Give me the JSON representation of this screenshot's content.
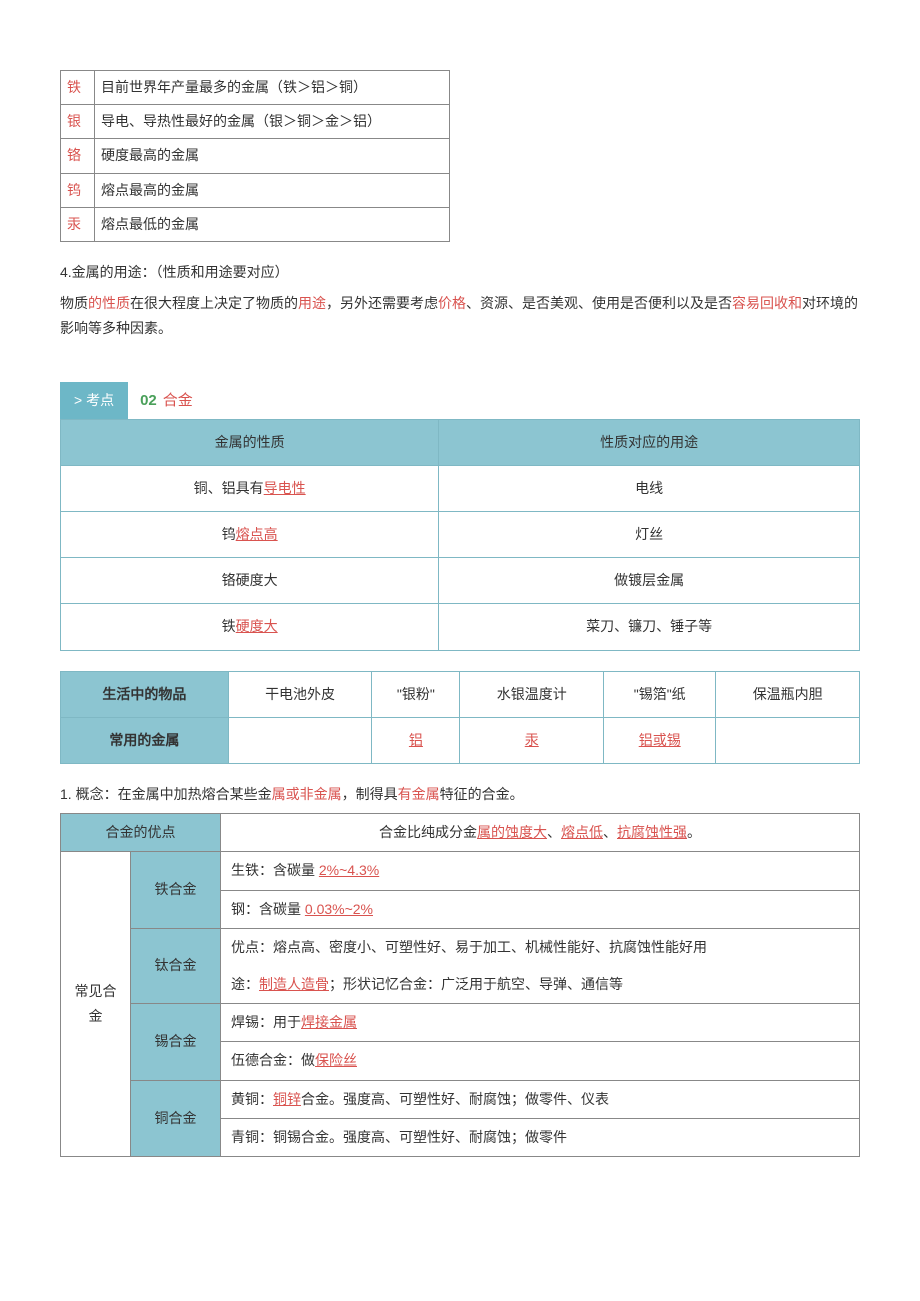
{
  "colors": {
    "teal_header": "#8cc5d1",
    "teal_border": "#7fb8c4",
    "highlight_red": "#d9534f",
    "green": "#4aa05a",
    "text": "#333333",
    "grey_border": "#888888"
  },
  "table1": {
    "rows": [
      {
        "k": "铁",
        "v": "目前世界年产量最多的金属（铁＞铝＞铜）"
      },
      {
        "k": "银",
        "v": "导电、导热性最好的金属（银＞铜＞金＞铝）"
      },
      {
        "k": "铬",
        "v": "硬度最高的金属"
      },
      {
        "k": "钨",
        "v": "熔点最高的金属"
      },
      {
        "k": "汞",
        "v": "熔点最低的金属"
      }
    ]
  },
  "section4": {
    "title": "4.金属的用途：（性质和用途要对应）",
    "p1_a": "物质",
    "p1_b": "的性质",
    "p1_c": "在很大程度上决定了物质的",
    "p1_d": "用途",
    "p1_e": "，另外还需要考虑",
    "p1_f": "价格",
    "p1_g": "、资源、是否美观、使用是否便利以及是否",
    "p1_h": "容易回收和",
    "p1_i": "对环境的影响等多种因素。"
  },
  "kaodian": {
    "badge": "> 考点",
    "num": "02",
    "title": "合金"
  },
  "table2": {
    "h1": "金属的性质",
    "h2": "性质对应的用途",
    "rows": [
      {
        "a_pre": "铜、铝具有",
        "a_hl": "导电性",
        "a_ul": true,
        "b": "电线"
      },
      {
        "a_pre": "钨",
        "a_hl": "熔点高",
        "a_ul": true,
        "b": "灯丝"
      },
      {
        "a_pre": "铬硬度大",
        "a_hl": "",
        "a_ul": false,
        "b": "做镀层金属"
      },
      {
        "a_pre": "铁",
        "a_hl": "硬度大",
        "a_ul": true,
        "b": "菜刀、镰刀、锤子等"
      }
    ]
  },
  "table3": {
    "h1": "生活中的物品",
    "h2": "常用的金属",
    "cols": [
      "干电池外皮",
      "\"银粉\"",
      "水银温度计",
      "\"锡箔\"纸",
      "保温瓶内胆"
    ],
    "vals": [
      {
        "text": "",
        "hl": false,
        "ul": false
      },
      {
        "text": "铝",
        "hl": true,
        "ul": true
      },
      {
        "text": "汞",
        "hl": true,
        "ul": true
      },
      {
        "text": "铝或锡",
        "hl": true,
        "ul": true
      },
      {
        "text": "",
        "hl": false,
        "ul": false
      }
    ]
  },
  "concept": {
    "pre": "1. 概念：在金属中加热熔合某些金",
    "hl1": "属或非金属",
    "mid": "，制得具",
    "hl2": "有金属",
    "post": "特征的合金。"
  },
  "table4": {
    "header_left": "合金的优点",
    "header_right_pre": "合金比纯成分金",
    "header_right_hl1": "属的蚀度大",
    "header_right_sep1": "、",
    "header_right_hl2": "熔点低",
    "header_right_sep2": "、",
    "header_right_hl3": "抗腐蚀性强",
    "header_right_post": "。",
    "side_label": "常见合金",
    "rows": {
      "iron": {
        "name": "铁合金",
        "r1_pre": "生铁：含碳量 ",
        "r1_hl": "2%~4.3%",
        "r2_pre": "钢：含碳量 ",
        "r2_hl": "0.03%~2%"
      },
      "ti": {
        "name": "钛合金",
        "r1": "优点：熔点高、密度小、可塑性好、易于加工、机械性能好、抗腐蚀性能好用",
        "r2_pre": "途：",
        "r2_hl": "制造人造骨",
        "r2_post": "；形状记忆合金：广泛用于航空、导弹、通信等"
      },
      "tin": {
        "name": "锡合金",
        "r1_pre": "焊锡：用于",
        "r1_hl": "焊接金属",
        "r2_pre": "伍德合金：做",
        "r2_hl": "保险丝"
      },
      "cu": {
        "name": "铜合金",
        "r1_pre": "黄铜：",
        "r1_hl": "铜锌",
        "r1_post": "合金。强度高、可塑性好、耐腐蚀；做零件、仪表",
        "r2": "青铜：铜锡合金。强度高、可塑性好、耐腐蚀；做零件"
      }
    }
  }
}
